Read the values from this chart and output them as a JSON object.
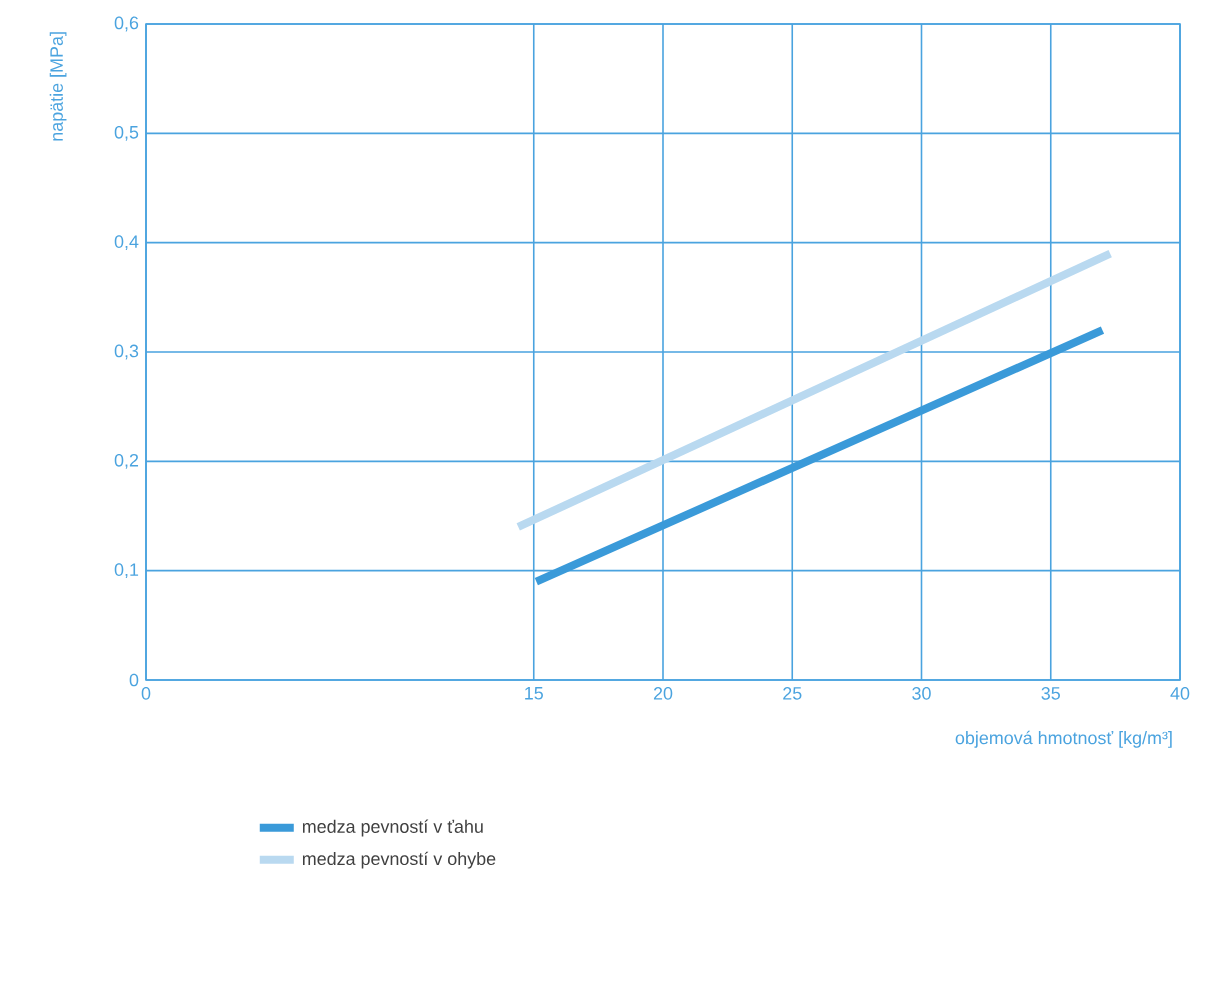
{
  "chart_data": {
    "type": "line",
    "xlabel": "objemová hmotnosť [kg/m³]",
    "ylabel": "napätie [MPa]",
    "xlim": [
      0,
      40
    ],
    "xticks": [
      0,
      15,
      20,
      25,
      30,
      35,
      40
    ],
    "ylim": [
      0,
      0.6
    ],
    "yticks": [
      0,
      {
        "value": 0.1,
        "label": "0,1"
      },
      {
        "value": 0.2,
        "label": "0,2"
      },
      {
        "value": 0.3,
        "label": "0,3"
      },
      {
        "value": 0.4,
        "label": "0,4"
      },
      {
        "value": 0.5,
        "label": "0,5"
      },
      {
        "value": 0.6,
        "label": "0,6"
      }
    ],
    "grid": true,
    "legend": "bottom",
    "line_style": "solid",
    "marker": "none",
    "series": [
      {
        "name": "medza pevností v ťahu",
        "color": "#3a9ad9",
        "x": [
          15.1,
          37
        ],
        "values": [
          0.09,
          0.32
        ]
      },
      {
        "name": "medza pevností v ohybe",
        "color": "#b9d9f0",
        "x": [
          14.4,
          37.3
        ],
        "values": [
          0.14,
          0.39
        ]
      }
    ]
  }
}
